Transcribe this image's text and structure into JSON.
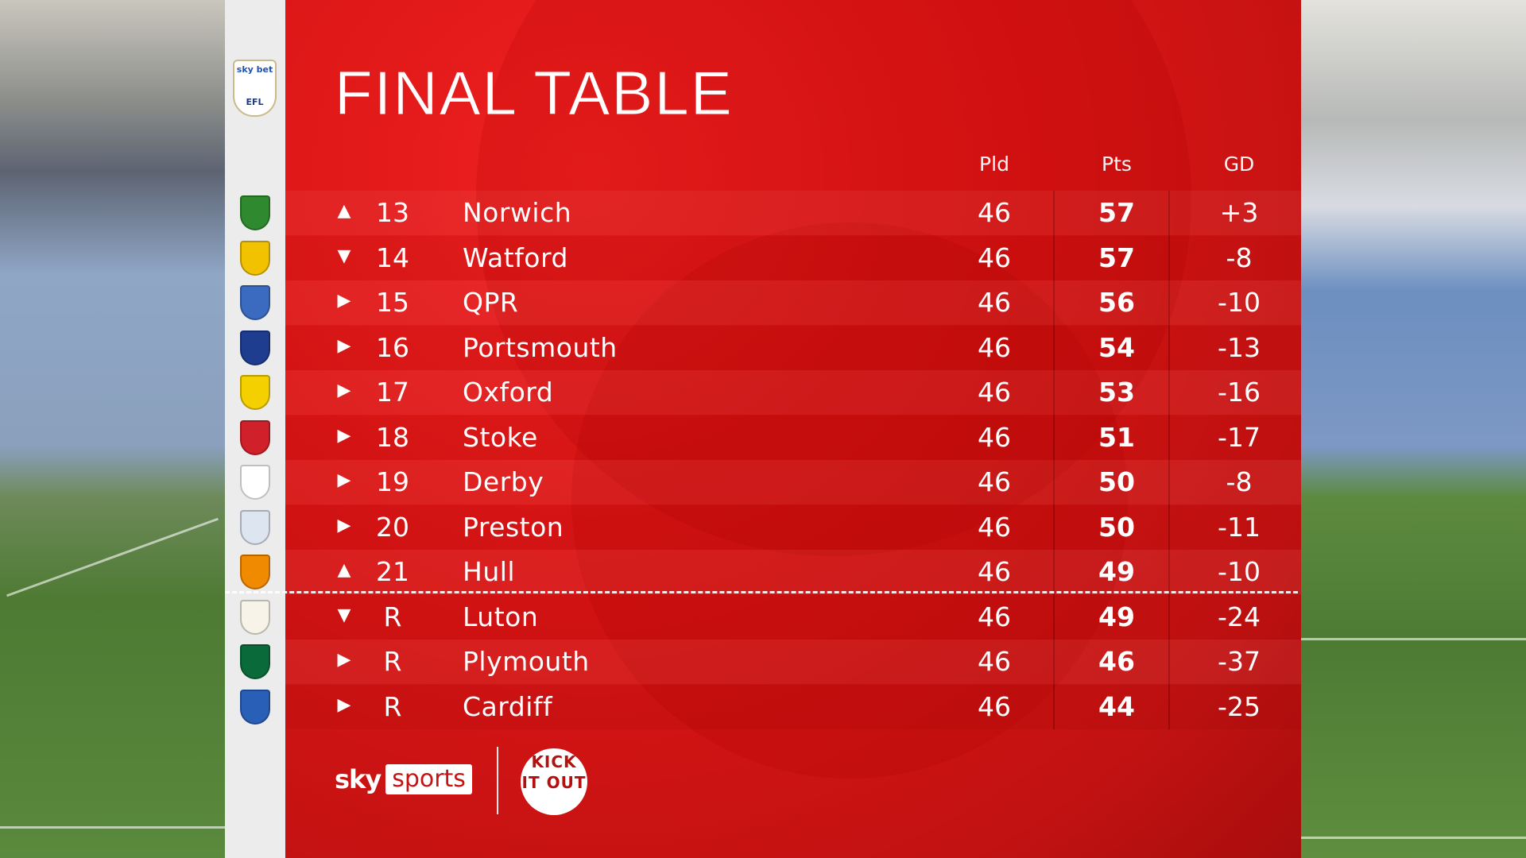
{
  "title": "FINAL TABLE",
  "league_logo": {
    "text_top": "sky bet",
    "text_bottom": "EFL"
  },
  "columns": {
    "played": "Pld",
    "points": "Pts",
    "goal_difference": "GD"
  },
  "colors": {
    "panel_red": "#d81414",
    "crest_column": "#ececec",
    "text": "#ffffff"
  },
  "rows": [
    {
      "movement": "up",
      "arrow": "▲",
      "position": "13",
      "team": "Norwich",
      "played": "46",
      "points": "57",
      "gd": "+3",
      "crest_color": "#2f8a2f"
    },
    {
      "movement": "down",
      "arrow": "▼",
      "position": "14",
      "team": "Watford",
      "played": "46",
      "points": "57",
      "gd": "-8",
      "crest_color": "#f2c200"
    },
    {
      "movement": "same",
      "arrow": "▶",
      "position": "15",
      "team": "QPR",
      "played": "46",
      "points": "56",
      "gd": "-10",
      "crest_color": "#3b6bc0"
    },
    {
      "movement": "same",
      "arrow": "▶",
      "position": "16",
      "team": "Portsmouth",
      "played": "46",
      "points": "54",
      "gd": "-13",
      "crest_color": "#1f3d8f"
    },
    {
      "movement": "same",
      "arrow": "▶",
      "position": "17",
      "team": "Oxford",
      "played": "46",
      "points": "53",
      "gd": "-16",
      "crest_color": "#f5d000"
    },
    {
      "movement": "same",
      "arrow": "▶",
      "position": "18",
      "team": "Stoke",
      "played": "46",
      "points": "51",
      "gd": "-17",
      "crest_color": "#d0202a"
    },
    {
      "movement": "same",
      "arrow": "▶",
      "position": "19",
      "team": "Derby",
      "played": "46",
      "points": "50",
      "gd": "-8",
      "crest_color": "#ffffff"
    },
    {
      "movement": "same",
      "arrow": "▶",
      "position": "20",
      "team": "Preston",
      "played": "46",
      "points": "50",
      "gd": "-11",
      "crest_color": "#dde6f0"
    },
    {
      "movement": "up",
      "arrow": "▲",
      "position": "21",
      "team": "Hull",
      "played": "46",
      "points": "49",
      "gd": "-10",
      "crest_color": "#f08a00"
    },
    {
      "movement": "down",
      "arrow": "▼",
      "position": "R",
      "team": "Luton",
      "played": "46",
      "points": "49",
      "gd": "-24",
      "crest_color": "#f7f3e8"
    },
    {
      "movement": "same",
      "arrow": "▶",
      "position": "R",
      "team": "Plymouth",
      "played": "46",
      "points": "46",
      "gd": "-37",
      "crest_color": "#0b6a3a"
    },
    {
      "movement": "same",
      "arrow": "▶",
      "position": "R",
      "team": "Cardiff",
      "played": "46",
      "points": "44",
      "gd": "-25",
      "crest_color": "#2a5fb8"
    }
  ],
  "footer": {
    "sky": "sky",
    "sports": "sports",
    "kick_it_out": "KICK IT OUT"
  }
}
